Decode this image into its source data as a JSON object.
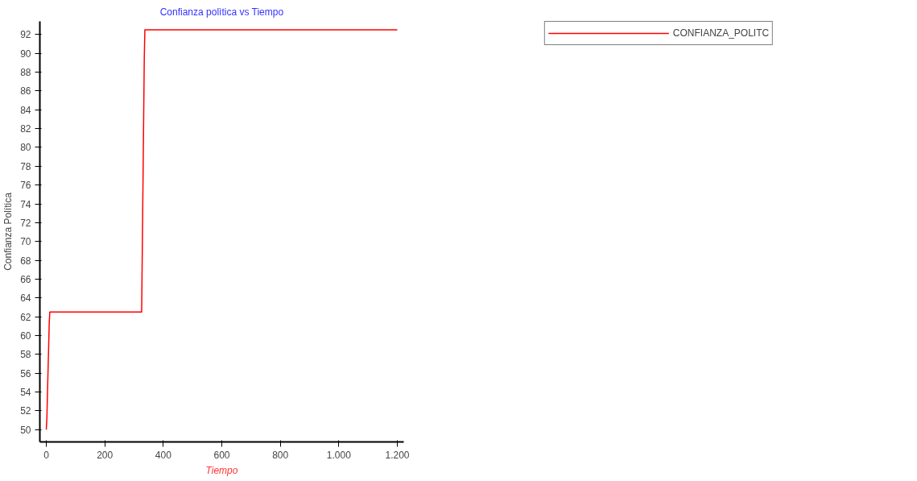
{
  "chart_data": {
    "type": "line",
    "title": "Confianza polìtica vs Tiempo",
    "xlabel": "Tiempo",
    "ylabel": "Confianza Política",
    "x": [
      0,
      2,
      4,
      6,
      8,
      10,
      12,
      326,
      327,
      329,
      331,
      333,
      335,
      337,
      1200
    ],
    "series": [
      {
        "name": "CONFIANZA_POLITC",
        "color": "#ff0000",
        "values": [
          50,
          51.2,
          53.8,
          56.3,
          58.7,
          61.3,
          62.5,
          62.5,
          65.5,
          71.5,
          77.5,
          83.5,
          89.5,
          92.5,
          92.5
        ]
      }
    ],
    "xlim": [
      -22,
      1222
    ],
    "ylim": [
      48.7,
      93.4
    ],
    "xticks": [
      0,
      200,
      400,
      600,
      800,
      {
        "value": 1000,
        "label": "1.000"
      },
      {
        "value": 1200,
        "label": "1.200"
      }
    ],
    "yticks": [
      50,
      52,
      54,
      56,
      58,
      60,
      62,
      64,
      66,
      68,
      70,
      72,
      74,
      76,
      78,
      80,
      82,
      84,
      86,
      88,
      90,
      92
    ],
    "grid": false,
    "legend": "top right"
  }
}
